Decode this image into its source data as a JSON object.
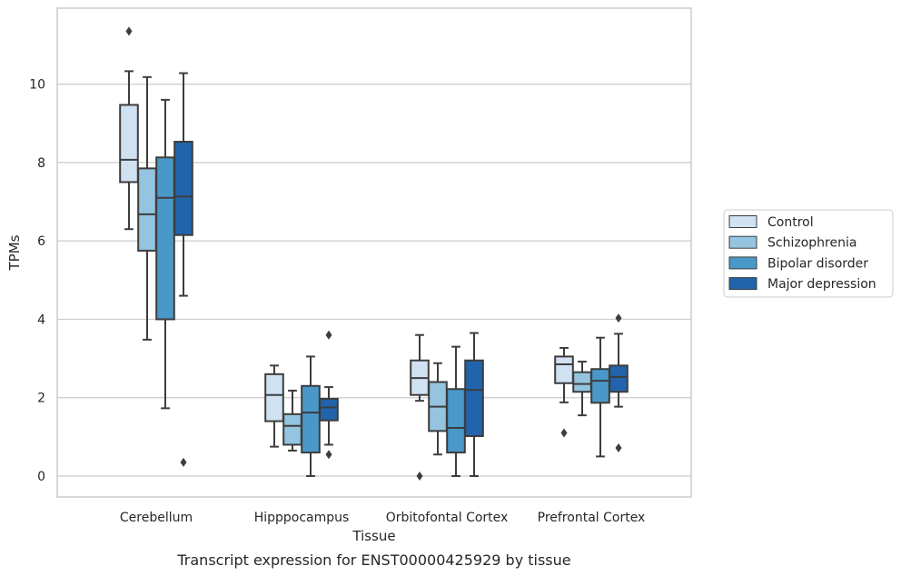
{
  "caption": "Transcript expression for ENST00000425929 by tissue",
  "chart_data": {
    "type": "box",
    "xlabel": "Tissue",
    "ylabel": "TPMs",
    "ylim": [
      -0.55,
      12.0
    ],
    "yticks": [
      0,
      2,
      4,
      6,
      8,
      10
    ],
    "grid": "horizontal",
    "legend_position": "right",
    "categories": [
      "Cerebellum",
      "Hipppocampus",
      "Orbitofontal Cortex",
      "Prefrontal Cortex"
    ],
    "series": [
      {
        "name": "Control",
        "color": "#d0e1f2",
        "boxes": [
          {
            "whisker_low": 6.3,
            "q1": 7.5,
            "median": 8.07,
            "q3": 9.47,
            "whisker_high": 10.33,
            "outliers": [
              11.35
            ]
          },
          {
            "whisker_low": 0.75,
            "q1": 1.4,
            "median": 2.07,
            "q3": 2.6,
            "whisker_high": 2.82,
            "outliers": []
          },
          {
            "whisker_low": 1.92,
            "q1": 2.07,
            "median": 2.5,
            "q3": 2.95,
            "whisker_high": 3.6,
            "outliers": [
              0.0
            ]
          },
          {
            "whisker_low": 1.88,
            "q1": 2.37,
            "median": 2.85,
            "q3": 3.05,
            "whisker_high": 3.27,
            "outliers": [
              1.1
            ]
          }
        ]
      },
      {
        "name": "Schizophrenia",
        "color": "#94c4df",
        "boxes": [
          {
            "whisker_low": 3.48,
            "q1": 5.75,
            "median": 6.68,
            "q3": 7.85,
            "whisker_high": 10.18,
            "outliers": []
          },
          {
            "whisker_low": 0.65,
            "q1": 0.8,
            "median": 1.28,
            "q3": 1.58,
            "whisker_high": 2.18,
            "outliers": []
          },
          {
            "whisker_low": 0.55,
            "q1": 1.15,
            "median": 1.77,
            "q3": 2.4,
            "whisker_high": 2.88,
            "outliers": []
          },
          {
            "whisker_low": 1.55,
            "q1": 2.15,
            "median": 2.35,
            "q3": 2.65,
            "whisker_high": 2.92,
            "outliers": []
          }
        ]
      },
      {
        "name": "Bipolar disorder",
        "color": "#4a98c9",
        "boxes": [
          {
            "whisker_low": 1.73,
            "q1": 4.0,
            "median": 7.1,
            "q3": 8.13,
            "whisker_high": 9.6,
            "outliers": []
          },
          {
            "whisker_low": 0.0,
            "q1": 0.6,
            "median": 1.62,
            "q3": 2.3,
            "whisker_high": 3.05,
            "outliers": []
          },
          {
            "whisker_low": 0.0,
            "q1": 0.6,
            "median": 1.23,
            "q3": 2.22,
            "whisker_high": 3.3,
            "outliers": []
          },
          {
            "whisker_low": 0.5,
            "q1": 1.87,
            "median": 2.43,
            "q3": 2.73,
            "whisker_high": 3.53,
            "outliers": []
          }
        ]
      },
      {
        "name": "Major depression",
        "color": "#2164ab",
        "boxes": [
          {
            "whisker_low": 4.6,
            "q1": 6.15,
            "median": 7.13,
            "q3": 8.53,
            "whisker_high": 10.28,
            "outliers": [
              0.35
            ]
          },
          {
            "whisker_low": 0.8,
            "q1": 1.42,
            "median": 1.75,
            "q3": 1.97,
            "whisker_high": 2.27,
            "outliers": [
              3.6,
              0.55
            ]
          },
          {
            "whisker_low": 0.0,
            "q1": 1.02,
            "median": 2.2,
            "q3": 2.95,
            "whisker_high": 3.65,
            "outliers": []
          },
          {
            "whisker_low": 1.77,
            "q1": 2.15,
            "median": 2.53,
            "q3": 2.82,
            "whisker_high": 3.63,
            "outliers": [
              4.03,
              0.72
            ]
          }
        ]
      }
    ]
  }
}
